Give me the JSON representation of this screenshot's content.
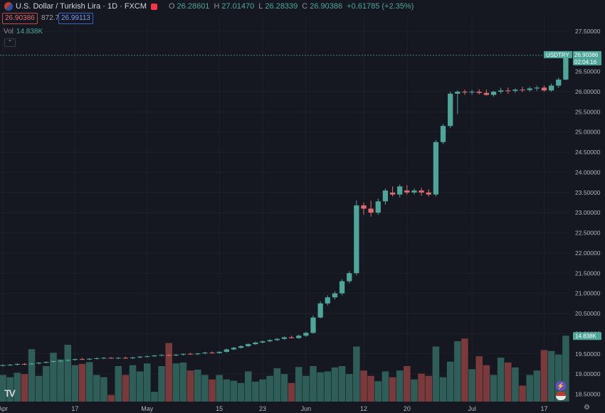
{
  "header": {
    "title": "U.S. Dollar / Turkish Lira · 1D · FXCM",
    "open_label": "O",
    "open": "26.28601",
    "high_label": "H",
    "high": "27.01470",
    "low_label": "L",
    "low": "26.28339",
    "close_label": "C",
    "close": "26.90386",
    "change": "+0.61785 (+2.35%)"
  },
  "quote": {
    "bid": "26.90386",
    "spread": "872.7",
    "ask": "26.99113"
  },
  "volume": {
    "label": "Vol",
    "value": "14.838K"
  },
  "price_tag": {
    "symbol": "USDTRY",
    "price": "26.90386",
    "countdown": "02:04:16"
  },
  "volume_tag": "14.838K",
  "colors": {
    "up": "#4ea59a",
    "down": "#e06b6e",
    "up_vol": "#2f5e58",
    "down_vol": "#7a3a3b",
    "background": "#161821",
    "grid": "#232631"
  },
  "chart_data": {
    "type": "candlestick",
    "y_ticks": [
      "18.50000",
      "19.00000",
      "19.50000",
      "20.00000",
      "20.50000",
      "21.00000",
      "21.50000",
      "22.00000",
      "22.50000",
      "23.00000",
      "23.50000",
      "24.00000",
      "24.50000",
      "25.00000",
      "25.50000",
      "26.00000",
      "26.50000",
      "27.50000"
    ],
    "ylim": [
      18.35,
      27.85
    ],
    "x_labels": [
      {
        "label": "Apr",
        "index": 0
      },
      {
        "label": "17",
        "index": 10
      },
      {
        "label": "May",
        "index": 20
      },
      {
        "label": "15",
        "index": 30
      },
      {
        "label": "23",
        "index": 36
      },
      {
        "label": "Jun",
        "index": 42
      },
      {
        "label": "12",
        "index": 50
      },
      {
        "label": "20",
        "index": 56
      },
      {
        "label": "Jul",
        "index": 65
      },
      {
        "label": "17",
        "index": 75
      }
    ],
    "volume_ylim": [
      0,
      20000
    ],
    "candles": [
      [
        19.2,
        19.24,
        19.19,
        19.22,
        6000
      ],
      [
        19.22,
        19.25,
        19.2,
        19.23,
        5500
      ],
      [
        19.23,
        19.26,
        19.21,
        19.25,
        6500
      ],
      [
        19.25,
        19.27,
        19.22,
        19.24,
        6200
      ],
      [
        19.24,
        19.27,
        19.23,
        19.26,
        11800
      ],
      [
        19.26,
        19.29,
        19.24,
        19.28,
        5800
      ],
      [
        19.28,
        19.31,
        19.26,
        19.3,
        8000
      ],
      [
        19.3,
        19.33,
        19.28,
        19.32,
        11000
      ],
      [
        19.32,
        19.35,
        19.29,
        19.33,
        9500
      ],
      [
        19.33,
        19.36,
        19.31,
        19.35,
        12800
      ],
      [
        19.35,
        19.38,
        19.33,
        19.37,
        8200
      ],
      [
        19.37,
        19.4,
        19.35,
        19.36,
        8500
      ],
      [
        19.36,
        19.39,
        19.34,
        19.38,
        8900
      ],
      [
        19.38,
        19.41,
        19.36,
        19.39,
        6000
      ],
      [
        19.39,
        19.42,
        19.37,
        19.4,
        5500
      ],
      [
        19.4,
        19.42,
        19.38,
        19.39,
        1500
      ],
      [
        19.39,
        19.42,
        19.37,
        19.4,
        8000
      ],
      [
        19.4,
        19.43,
        19.38,
        19.39,
        6000
      ],
      [
        19.39,
        19.42,
        19.37,
        19.41,
        8200
      ],
      [
        19.41,
        19.44,
        19.39,
        19.43,
        6800
      ],
      [
        19.43,
        19.46,
        19.41,
        19.44,
        8600
      ],
      [
        19.44,
        19.47,
        19.42,
        19.46,
        2200
      ],
      [
        19.46,
        19.49,
        19.44,
        19.47,
        8000
      ],
      [
        19.47,
        19.49,
        19.45,
        19.46,
        13200
      ],
      [
        19.46,
        19.49,
        19.44,
        19.48,
        8600
      ],
      [
        19.48,
        19.51,
        19.46,
        19.5,
        8800
      ],
      [
        19.5,
        19.53,
        19.48,
        19.49,
        7000
      ],
      [
        19.49,
        19.52,
        19.47,
        19.51,
        7200
      ],
      [
        19.51,
        19.55,
        19.49,
        19.53,
        6000
      ],
      [
        19.53,
        19.56,
        19.51,
        19.52,
        5000
      ],
      [
        19.52,
        19.56,
        19.5,
        19.55,
        6000
      ],
      [
        19.55,
        19.63,
        19.53,
        19.61,
        5000
      ],
      [
        19.61,
        19.67,
        19.59,
        19.65,
        4700
      ],
      [
        19.65,
        19.71,
        19.63,
        19.69,
        4200
      ],
      [
        19.69,
        19.76,
        19.67,
        19.74,
        6800
      ],
      [
        19.74,
        19.8,
        19.72,
        19.78,
        4500
      ],
      [
        19.78,
        19.83,
        19.76,
        19.81,
        5000
      ],
      [
        19.81,
        19.86,
        19.79,
        19.84,
        5800
      ],
      [
        19.84,
        19.89,
        19.82,
        19.87,
        7500
      ],
      [
        19.87,
        19.93,
        19.85,
        19.91,
        6200
      ],
      [
        19.91,
        19.95,
        19.88,
        19.89,
        4200
      ],
      [
        19.89,
        19.98,
        19.87,
        19.95,
        7800
      ],
      [
        19.95,
        20.05,
        19.92,
        20.02,
        5800
      ],
      [
        20.02,
        20.45,
        20.0,
        20.4,
        8000
      ],
      [
        20.4,
        20.8,
        20.38,
        20.75,
        6600
      ],
      [
        20.75,
        20.95,
        20.7,
        20.9,
        6800
      ],
      [
        20.9,
        21.05,
        20.85,
        21.0,
        7700
      ],
      [
        21.0,
        21.35,
        20.95,
        21.3,
        8000
      ],
      [
        21.3,
        21.55,
        21.25,
        21.5,
        6200
      ],
      [
        21.5,
        23.3,
        21.45,
        23.18,
        12400
      ],
      [
        23.18,
        23.25,
        22.95,
        23.1,
        7000
      ],
      [
        23.1,
        23.3,
        22.9,
        23.0,
        5800
      ],
      [
        23.0,
        23.35,
        22.95,
        23.28,
        4600
      ],
      [
        23.28,
        23.6,
        23.2,
        23.55,
        6800
      ],
      [
        23.5,
        23.65,
        23.4,
        23.45,
        5500
      ],
      [
        23.45,
        23.7,
        23.38,
        23.65,
        7000
      ],
      [
        23.55,
        23.68,
        23.45,
        23.5,
        8000
      ],
      [
        23.5,
        23.6,
        23.45,
        23.55,
        5000
      ],
      [
        23.55,
        23.62,
        23.42,
        23.5,
        6300
      ],
      [
        23.5,
        23.58,
        23.4,
        23.45,
        5800
      ],
      [
        23.45,
        24.8,
        23.4,
        24.75,
        12400
      ],
      [
        24.75,
        25.2,
        24.7,
        25.15,
        5500
      ],
      [
        25.15,
        26.0,
        25.1,
        25.95,
        9000
      ],
      [
        25.95,
        26.03,
        25.45,
        26.0,
        13600
      ],
      [
        26.0,
        26.05,
        25.92,
        25.98,
        14200
      ],
      [
        25.98,
        26.05,
        25.92,
        26.0,
        7300
      ],
      [
        26.0,
        26.06,
        25.93,
        25.97,
        10200
      ],
      [
        25.97,
        26.05,
        25.9,
        25.92,
        8200
      ],
      [
        25.92,
        26.02,
        25.88,
        26.0,
        6000
      ],
      [
        26.0,
        26.1,
        25.95,
        26.03,
        9900
      ],
      [
        26.03,
        26.1,
        25.95,
        26.02,
        8800
      ],
      [
        26.02,
        26.08,
        25.97,
        26.05,
        7700
      ],
      [
        26.05,
        26.12,
        25.99,
        26.04,
        3600
      ],
      [
        26.04,
        26.12,
        26.0,
        26.08,
        6000
      ],
      [
        26.08,
        26.15,
        26.02,
        26.1,
        7000
      ],
      [
        26.1,
        26.15,
        26.0,
        26.03,
        11600
      ],
      [
        26.03,
        26.2,
        26.0,
        26.15,
        11400
      ],
      [
        26.15,
        26.35,
        26.1,
        26.3,
        10600
      ],
      [
        26.3,
        27.01,
        26.28,
        26.9,
        14838
      ]
    ]
  }
}
